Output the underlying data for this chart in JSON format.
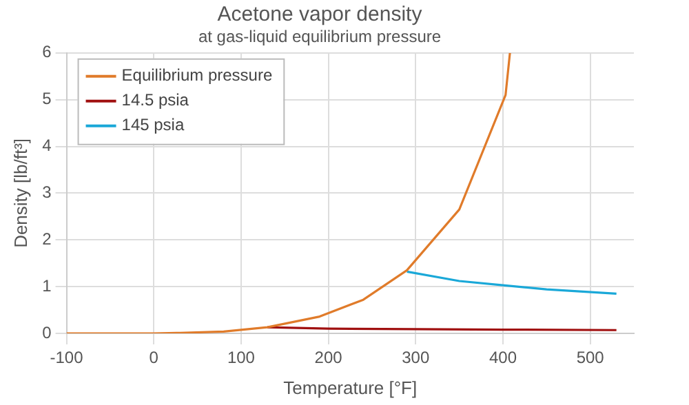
{
  "chart_data": {
    "type": "line",
    "title": "Acetone vapor density",
    "subtitle": "at gas-liquid equilibrium pressure",
    "xlabel": "Temperature [°F]",
    "ylabel": "Density [lb/ft³]",
    "xlim": [
      -100,
      550
    ],
    "xticks": [
      -100,
      0,
      100,
      200,
      300,
      400,
      500
    ],
    "ylim": [
      0,
      6
    ],
    "yticks": [
      0,
      1,
      2,
      3,
      4,
      5,
      6
    ],
    "grid": true,
    "legend": "top left",
    "marker": "none",
    "series": [
      {
        "name": "Equilibrium pressure",
        "color": "#e07b2a",
        "x": [
          -100,
          0,
          30,
          80,
          130,
          190,
          240,
          290,
          350,
          403,
          408
        ],
        "values": [
          0,
          0,
          0.01,
          0.04,
          0.13,
          0.36,
          0.72,
          1.35,
          2.65,
          5.1,
          6
        ]
      },
      {
        "name": "14.5 psia",
        "color": "#a01010",
        "x": [
          130,
          200,
          300,
          400,
          530
        ],
        "values": [
          0.13,
          0.1,
          0.09,
          0.08,
          0.07
        ]
      },
      {
        "name": "145 psia",
        "color": "#1aa8d8",
        "x": [
          290,
          350,
          400,
          450,
          530
        ],
        "values": [
          1.32,
          1.12,
          1.03,
          0.94,
          0.85
        ]
      }
    ]
  }
}
